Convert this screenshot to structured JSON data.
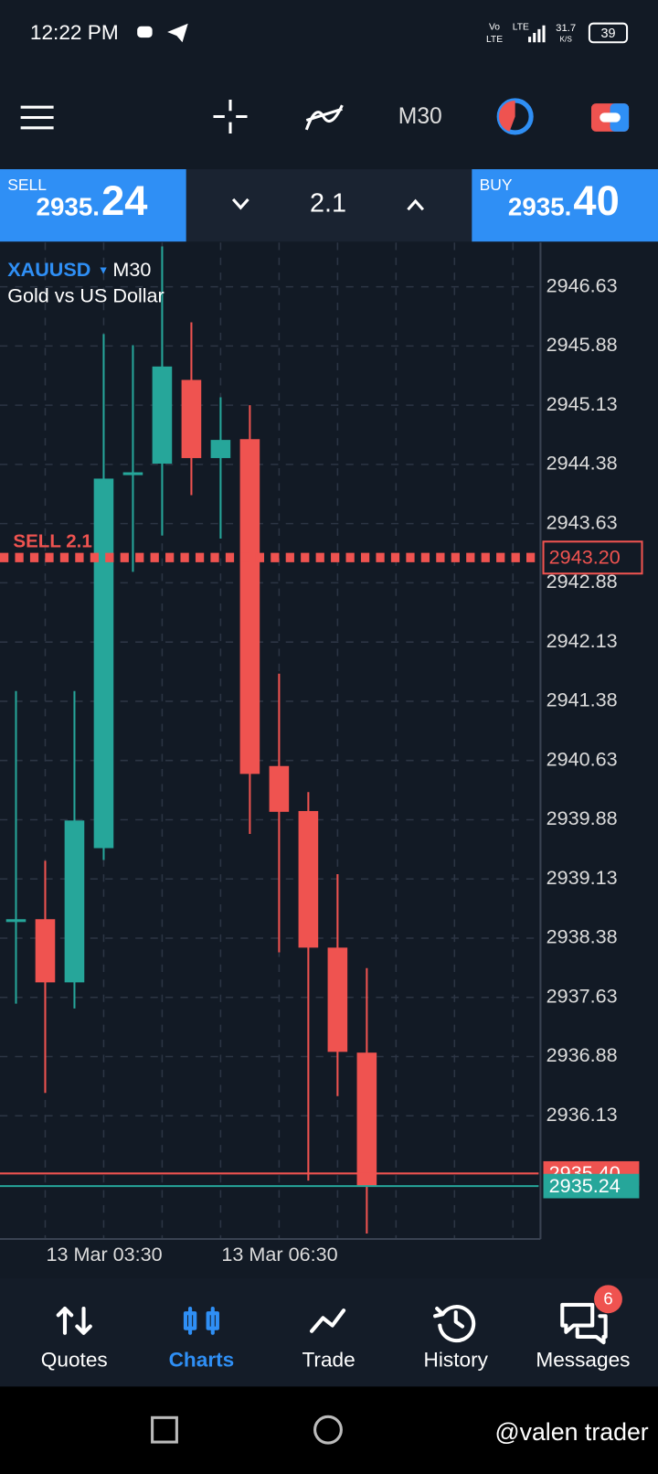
{
  "status_bar": {
    "time": "12:22 PM",
    "vo": "Vo",
    "volte": "LTE",
    "lte": "LTE",
    "speed": "31.7",
    "speed_unit": "K/S",
    "battery": "39"
  },
  "toolbar": {
    "timeframe": "M30"
  },
  "trade_panel": {
    "sell_label": "SELL",
    "sell_price_main": "2935.",
    "sell_price_pips": "24",
    "lot": "2.1",
    "buy_label": "BUY",
    "buy_price_main": "2935.",
    "buy_price_pips": "40"
  },
  "chart_data": {
    "type": "candlestick",
    "symbol": "XAUUSD",
    "timeframe": "M30",
    "title": "Gold vs US Dollar",
    "categories": [
      null,
      "13 Mar 03:30",
      null,
      null,
      null,
      null,
      null,
      "13 Mar 06:30",
      null,
      null,
      null,
      null,
      null
    ],
    "open": [
      2938.61,
      2938.62,
      2937.82,
      2939.52,
      2944.26,
      2944.39,
      2945.45,
      2944.46,
      2944.7,
      2940.56,
      2939.99,
      2938.26,
      2936.93
    ],
    "high": [
      2941.51,
      2939.36,
      2941.51,
      2946.03,
      2945.89,
      2947.14,
      2946.18,
      2945.23,
      2945.13,
      2941.73,
      2940.23,
      2939.19,
      2938.0
    ],
    "low": [
      2937.55,
      2936.42,
      2937.49,
      2939.37,
      2943.02,
      2943.48,
      2943.99,
      2943.44,
      2939.7,
      2938.2,
      2935.31,
      2936.38,
      2934.64
    ],
    "close": [
      2938.62,
      2937.82,
      2939.87,
      2944.2,
      2944.28,
      2945.62,
      2944.46,
      2944.69,
      2940.46,
      2939.98,
      2938.26,
      2936.94,
      2935.24
    ],
    "up_color": "#26a69a",
    "down_color": "#ef5350",
    "ylim": [
      2934.57,
      2947.19
    ],
    "yticks": [
      2946.63,
      2945.88,
      2945.13,
      2944.38,
      2943.63,
      2942.88,
      2942.13,
      2941.38,
      2940.63,
      2939.88,
      2939.13,
      2938.38,
      2937.63,
      2936.88,
      2936.13
    ],
    "grid": true,
    "price_lines": [
      {
        "value": 2943.2,
        "label": "2943.20",
        "color": "#ef5350",
        "style": "dotted"
      },
      {
        "value": 2935.4,
        "label": "2935.40",
        "color": "#ef5350",
        "style": "solid"
      },
      {
        "value": 2935.24,
        "label": "2935.24",
        "color": "#26a69a",
        "style": "solid"
      }
    ],
    "annotation": "SELL 2.1"
  },
  "nav": {
    "items": [
      "Quotes",
      "Charts",
      "Trade",
      "History",
      "Messages"
    ],
    "active": 1,
    "badge": "6"
  },
  "watermark": "@valen trader"
}
